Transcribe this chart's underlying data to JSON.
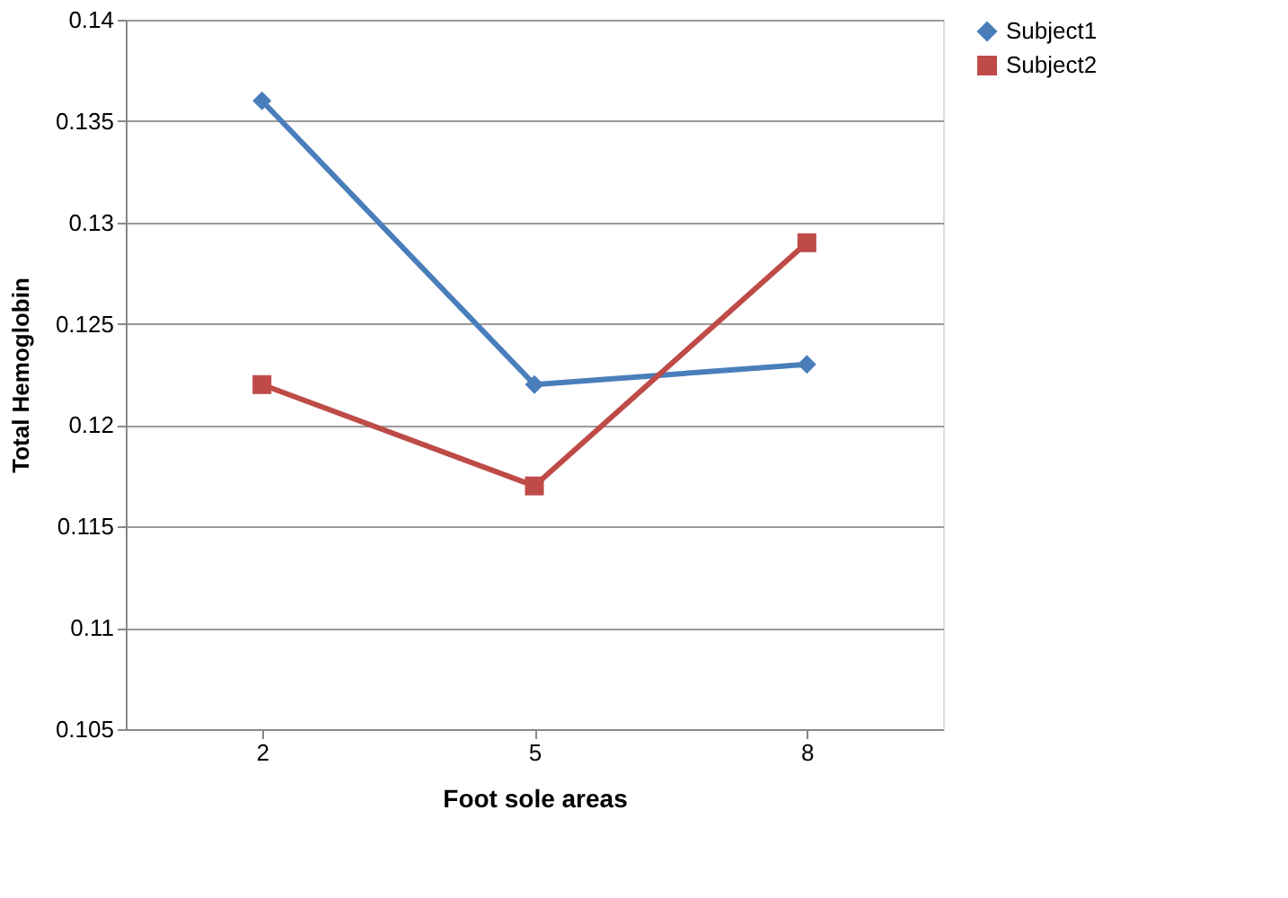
{
  "chart_data": {
    "type": "line",
    "xlabel": "Foot sole areas",
    "ylabel": "Total Hemoglobin",
    "categories": [
      "2",
      "5",
      "8"
    ],
    "series": [
      {
        "name": "Subject1",
        "color": "#4a7ebb",
        "marker": "diamond",
        "values": [
          0.136,
          0.122,
          0.123
        ]
      },
      {
        "name": "Subject2",
        "color": "#be4b48",
        "marker": "square",
        "values": [
          0.122,
          0.117,
          0.129
        ]
      }
    ],
    "ylim": [
      0.105,
      0.14
    ],
    "yticks": [
      0.105,
      0.11,
      0.115,
      0.12,
      0.125,
      0.13,
      0.135,
      0.14
    ],
    "grid": "y",
    "legend": "right",
    "line_style": "solid"
  }
}
